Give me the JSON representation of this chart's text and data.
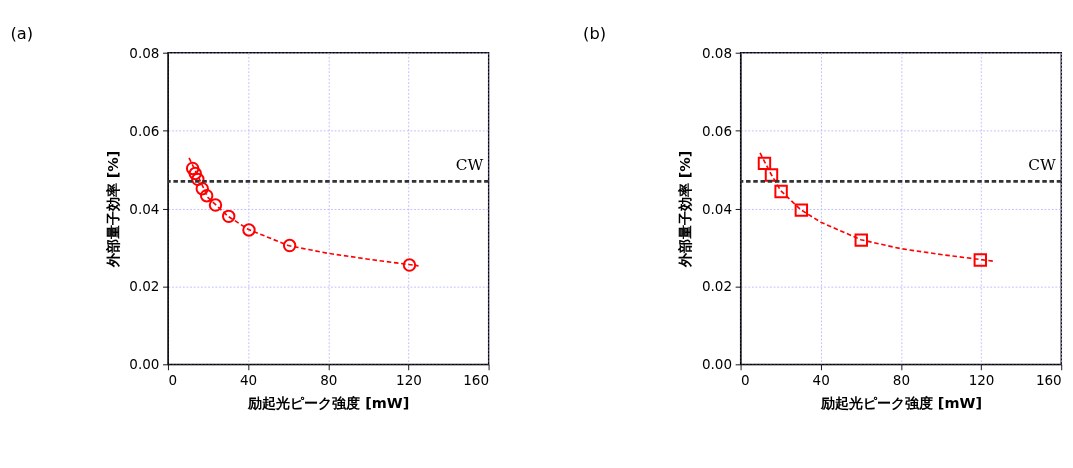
{
  "chart_data": [
    {
      "type": "scatter",
      "title": "(a)",
      "xlabel": "励起光ピーク強度 [mW]",
      "ylabel": "外部量子効率 [%]",
      "xlim": [
        0,
        160
      ],
      "xticks": [
        0,
        40,
        80,
        120,
        160
      ],
      "ylim": [
        0,
        0.08
      ],
      "yticks": [
        {
          "value": 0,
          "label": "0.00"
        },
        {
          "value": 0.02,
          "label": "0.02"
        },
        {
          "value": 0.04,
          "label": "0.04"
        },
        {
          "value": 0.06,
          "label": "0.06"
        },
        {
          "value": 0.08,
          "label": "0.08"
        }
      ],
      "grid": true,
      "series": [
        {
          "type": "scatter",
          "marker": "circle",
          "color": "#ff0000",
          "x": [
            12.3,
            13.6,
            14.9,
            17.1,
            19.3,
            23.7,
            30.3,
            40.4,
            60.7,
            120.5
          ],
          "values": [
            0.0503,
            0.049,
            0.0475,
            0.0451,
            0.0433,
            0.0409,
            0.038,
            0.0345,
            0.0305,
            0.0255
          ]
        },
        {
          "type": "line",
          "line_style": "dashed",
          "color": "#ff0000",
          "x": [
            10.5,
            15,
            20,
            30,
            40,
            60,
            80,
            100,
            125
          ],
          "values": [
            0.053,
            0.0483,
            0.0428,
            0.038,
            0.0347,
            0.0305,
            0.0285,
            0.027,
            0.0253
          ]
        }
      ],
      "ref_lines": [
        {
          "axis": "y",
          "value": 0.047,
          "label": "CW",
          "color": "#333333",
          "line_style": "dashed"
        }
      ]
    },
    {
      "type": "scatter",
      "title": "(b)",
      "xlabel": "励起光ピーク強度 [mW]",
      "ylabel": "外部量子効率 [%]",
      "xlim": [
        0,
        160
      ],
      "xticks": [
        0,
        40,
        80,
        120,
        160
      ],
      "ylim": [
        0,
        0.08
      ],
      "yticks": [
        {
          "value": 0,
          "label": "0.00"
        },
        {
          "value": 0.02,
          "label": "0.02"
        },
        {
          "value": 0.04,
          "label": "0.04"
        },
        {
          "value": 0.06,
          "label": "0.06"
        },
        {
          "value": 0.08,
          "label": "0.08"
        }
      ],
      "grid": true,
      "series": [
        {
          "type": "scatter",
          "marker": "square",
          "color": "#ff0000",
          "x": [
            11.9,
            15.4,
            20.2,
            30.3,
            60.2,
            119.6
          ],
          "values": [
            0.0516,
            0.0486,
            0.0444,
            0.0396,
            0.0319,
            0.0268
          ]
        },
        {
          "type": "line",
          "line_style": "dashed",
          "color": "#ff0000",
          "x": [
            9.7,
            15,
            20,
            30,
            40,
            60,
            80,
            100,
            126
          ],
          "values": [
            0.0543,
            0.049,
            0.0446,
            0.0397,
            0.0365,
            0.032,
            0.0297,
            0.0282,
            0.0265
          ]
        }
      ],
      "ref_lines": [
        {
          "axis": "y",
          "value": 0.047,
          "label": "CW",
          "color": "#333333",
          "line_style": "dashed"
        }
      ]
    }
  ]
}
